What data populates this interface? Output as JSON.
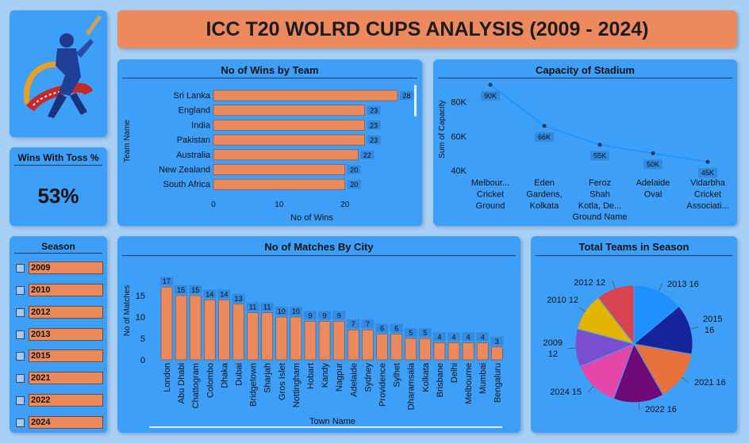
{
  "dashboard": {
    "title": "ICC T20 WOLRD CUPS ANALYSIS (2009 - 2024)"
  },
  "toss": {
    "label": "Wins With Toss %",
    "value": "53%"
  },
  "season": {
    "label": "Season",
    "options": [
      "2009",
      "2010",
      "2012",
      "2013",
      "2015",
      "2021",
      "2022",
      "2024"
    ]
  },
  "colors": {
    "bar": "#ec8a5e",
    "card": "#3d9ff7",
    "line": "#1e90ff"
  },
  "chart_data": [
    {
      "id": "wins_by_team",
      "type": "bar",
      "orientation": "horizontal",
      "title": "No of Wins by Team",
      "xlabel": "No of Wins",
      "ylabel": "Team Name",
      "categories": [
        "Sri Lanka",
        "England",
        "India",
        "Pakistan",
        "Australia",
        "New Zealand",
        "South Africa"
      ],
      "values": [
        28,
        23,
        23,
        23,
        22,
        20,
        20
      ],
      "xticks": [
        "0",
        "10",
        "20"
      ],
      "xlim": [
        0,
        28
      ]
    },
    {
      "id": "stadium_capacity",
      "type": "line",
      "title": "Capacity of Stadium",
      "xlabel": "Ground Name",
      "ylabel": "Sum of Capacity",
      "categories": [
        [
          "Melbour...",
          "Cricket",
          "Ground"
        ],
        [
          "Eden",
          "Gardens,",
          "Kolkata"
        ],
        [
          "Feroz",
          "Shah",
          "Kotla, De..."
        ],
        [
          "Adelaide",
          "Oval"
        ],
        [
          "Vidarbha",
          "Cricket",
          "Associati..."
        ]
      ],
      "values": [
        90000,
        66000,
        55000,
        50000,
        45000
      ],
      "data_labels": [
        "90K",
        "66K",
        "55K",
        "50K",
        "45K"
      ],
      "yticks": [
        "40K",
        "60K",
        "80K"
      ],
      "ylim": [
        40000,
        90000
      ]
    },
    {
      "id": "matches_by_city",
      "type": "bar",
      "title": "No of Matches By City",
      "xlabel": "Town Name",
      "ylabel": "No of Matches",
      "categories": [
        "London",
        "Abu Dhabi",
        "Chattogram",
        "Colombo",
        "Dhaka",
        "Dubai",
        "Bridgetown",
        "Sharjah",
        "Gros Islet",
        "Nottingham",
        "Hobart",
        "Kandy",
        "Nagpur",
        "Adelaide",
        "Sydney",
        "Providence",
        "Sylhet",
        "Dharamsala",
        "Kolkata",
        "Brisbane",
        "Delhi",
        "Melbourne",
        "Mumbai",
        "Bengaluru"
      ],
      "values": [
        17,
        15,
        15,
        14,
        14,
        13,
        11,
        11,
        10,
        10,
        9,
        9,
        9,
        7,
        7,
        6,
        6,
        5,
        5,
        4,
        4,
        4,
        4,
        3
      ],
      "yticks": [
        "0",
        "5",
        "10",
        "15"
      ],
      "ylim": [
        0,
        18
      ]
    },
    {
      "id": "teams_in_season",
      "type": "pie",
      "title": "Total Teams in Season",
      "slices": [
        {
          "label": "2013",
          "value": 16,
          "text": "2013 16",
          "color": "#1e90ff"
        },
        {
          "label": "2015",
          "value": 16,
          "text": "2015 16",
          "color": "#16249b"
        },
        {
          "label": "2021",
          "value": 16,
          "text": "2021 16",
          "color": "#e8703a"
        },
        {
          "label": "2022",
          "value": 16,
          "text": "2022 16",
          "color": "#6e0a78"
        },
        {
          "label": "2024",
          "value": 15,
          "text": "2024 15",
          "color": "#e547a8"
        },
        {
          "label": "2009",
          "value": 12,
          "text": "2009 12",
          "color": "#7a4fcf"
        },
        {
          "label": "2010",
          "value": 12,
          "text": "2010 12",
          "color": "#e3b400"
        },
        {
          "label": "2012",
          "value": 12,
          "text": "2012 12",
          "color": "#d9424f"
        }
      ]
    }
  ]
}
